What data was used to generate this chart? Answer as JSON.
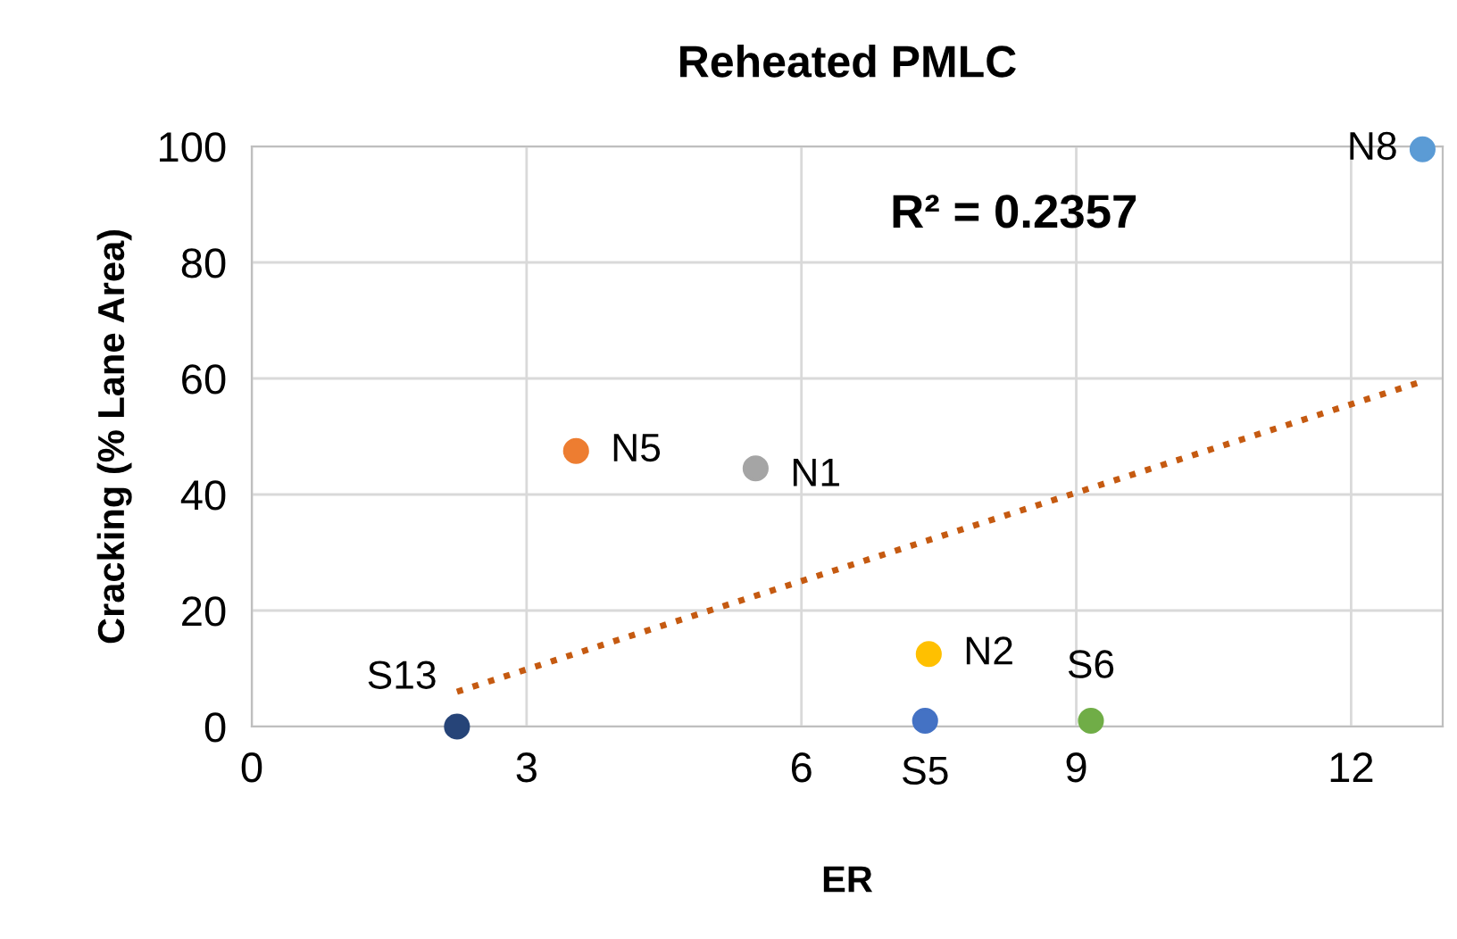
{
  "chart_data": {
    "type": "scatter",
    "title": "Reheated PMLC",
    "xlabel": "ER",
    "ylabel": "Cracking (% Lane Area)",
    "xlim": [
      0,
      13
    ],
    "xticks": [
      0,
      3,
      6,
      9,
      12
    ],
    "ylim": [
      0,
      100
    ],
    "yticks": [
      0,
      20,
      40,
      60,
      80,
      100
    ],
    "grid": true,
    "legend": false,
    "series": [
      {
        "name": "S13",
        "color": "#264478",
        "marker": "circle",
        "x": [
          2.24
        ],
        "values": [
          0
        ]
      },
      {
        "name": "N5",
        "color": "#ed7d31",
        "marker": "circle",
        "x": [
          3.54
        ],
        "values": [
          47.5
        ]
      },
      {
        "name": "N1",
        "color": "#a5a5a5",
        "marker": "circle",
        "x": [
          5.5
        ],
        "values": [
          44.5
        ]
      },
      {
        "name": "N2",
        "color": "#ffc000",
        "marker": "circle",
        "x": [
          7.39
        ],
        "values": [
          12.5
        ]
      },
      {
        "name": "S5",
        "color": "#4472c4",
        "marker": "circle",
        "x": [
          7.35
        ],
        "values": [
          1
        ]
      },
      {
        "name": "S6",
        "color": "#70ad47",
        "marker": "circle",
        "x": [
          9.16
        ],
        "values": [
          1
        ]
      },
      {
        "name": "N8",
        "color": "#5b9bd5",
        "marker": "circle",
        "x": [
          12.78
        ],
        "values": [
          99.5
        ]
      },
      {
        "type": "line",
        "color": "#c55a11",
        "line_style": "dotted",
        "x": [
          2.24,
          12.78
        ],
        "values": [
          6,
          59.5
        ]
      }
    ],
    "annotations": [
      "R² = 0.2357"
    ]
  }
}
